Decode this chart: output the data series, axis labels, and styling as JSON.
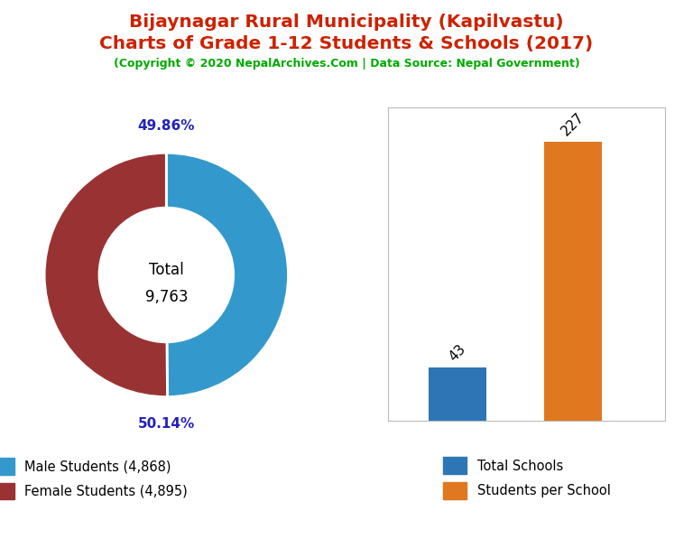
{
  "title_line1": "Bijaynagar Rural Municipality (Kapilvastu)",
  "title_line2": "Charts of Grade 1-12 Students & Schools (2017)",
  "subtitle": "(Copyright © 2020 NepalArchives.Com | Data Source: Nepal Government)",
  "title_color": "#cc2200",
  "subtitle_color": "#00aa00",
  "donut_values": [
    4868,
    4895
  ],
  "donut_colors": [
    "#3399cc",
    "#993333"
  ],
  "donut_labels": [
    "49.86%",
    "50.14%"
  ],
  "donut_total_label": "Total\n9,763",
  "legend_donut": [
    "Male Students (4,868)",
    "Female Students (4,895)"
  ],
  "bar_categories": [
    "Total Schools",
    "Students per School"
  ],
  "bar_values": [
    43,
    227
  ],
  "bar_colors": [
    "#2e75b6",
    "#e07820"
  ],
  "label_color_pct": "#2222bb",
  "background_color": "#ffffff"
}
